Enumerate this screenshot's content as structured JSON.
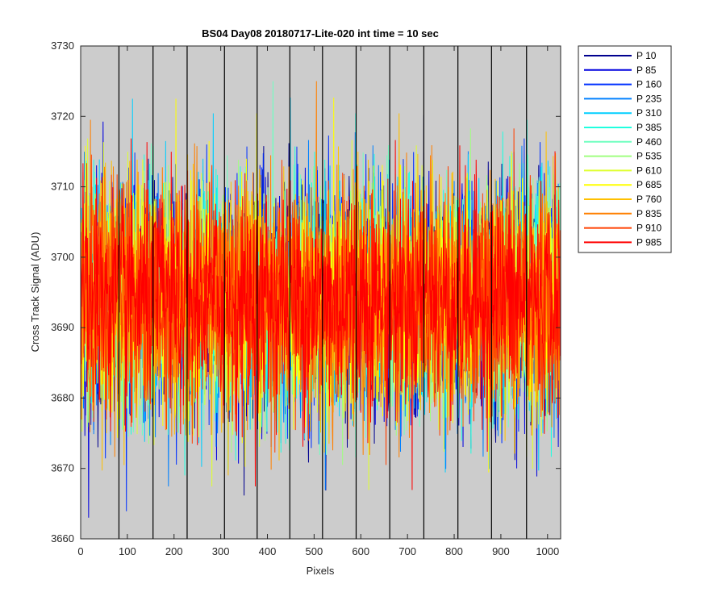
{
  "chart_data": {
    "type": "line",
    "title": "BS04 Day08 20180717-Lite-020 int time = 10 sec",
    "xlabel": "Pixels",
    "ylabel": "Cross Track Signal (ADU)",
    "xlim": [
      0,
      1028
    ],
    "ylim": [
      3660,
      3730
    ],
    "xticks": [
      0,
      100,
      200,
      300,
      400,
      500,
      600,
      700,
      800,
      900,
      1000
    ],
    "yticks": [
      3660,
      3670,
      3680,
      3690,
      3700,
      3710,
      3720,
      3730
    ],
    "vertical_lines_x": [
      82,
      155,
      228,
      308,
      378,
      448,
      518,
      590,
      662,
      735,
      808,
      880,
      955
    ],
    "background_color": "#cccccc",
    "grid": false,
    "legend_position": "outside-right",
    "noise_model": {
      "x_start": 0,
      "x_end": 1027,
      "mean": 3694,
      "std": 8,
      "min": 3663,
      "max": 3725
    },
    "series": [
      {
        "name": "P 10",
        "color": "#00008f"
      },
      {
        "name": "P 85",
        "color": "#0000df"
      },
      {
        "name": "P 160",
        "color": "#0030ff"
      },
      {
        "name": "P 235",
        "color": "#0080ff"
      },
      {
        "name": "P 310",
        "color": "#00cfff"
      },
      {
        "name": "P 385",
        "color": "#20ffdf"
      },
      {
        "name": "P 460",
        "color": "#70ffc0"
      },
      {
        "name": "P 535",
        "color": "#a0ff80"
      },
      {
        "name": "P 610",
        "color": "#dfff30"
      },
      {
        "name": "P 685",
        "color": "#ffff00"
      },
      {
        "name": "P 760",
        "color": "#ffc000"
      },
      {
        "name": "P 835",
        "color": "#ff8000"
      },
      {
        "name": "P 910",
        "color": "#ff4000"
      },
      {
        "name": "P 985",
        "color": "#ff0000"
      }
    ]
  }
}
